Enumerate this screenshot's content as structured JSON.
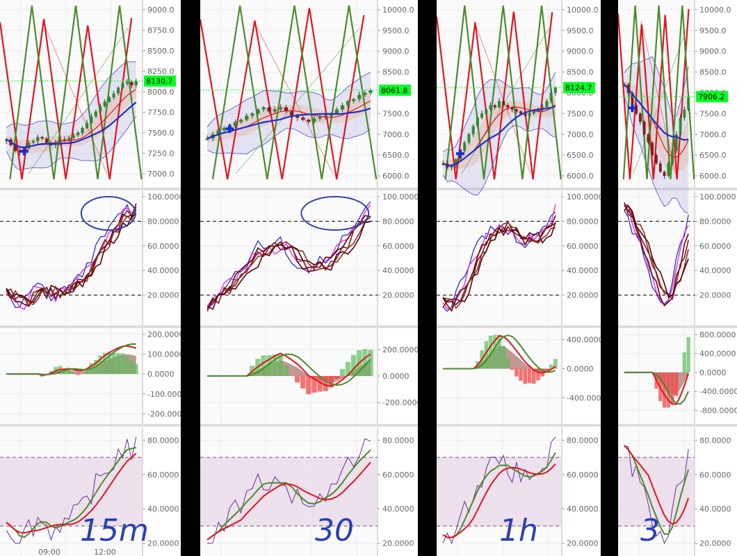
{
  "chart_data": [
    {
      "type": "candlestick",
      "timeframe_label": "15m",
      "x_tick_labels": [
        "09:00",
        "12:00"
      ],
      "price": {
        "yticks": [
          "9000.0",
          "8750.0",
          "8500.0",
          "8250.0",
          "8000.0",
          "7750.0",
          "7500.0",
          "7250.0",
          "7000.0"
        ],
        "ylim": [
          6900,
          9050
        ],
        "last_price": "8130.7",
        "close": [
          7420,
          7350,
          7280,
          7260,
          7310,
          7380,
          7400,
          7450,
          7430,
          7380,
          7350,
          7380,
          7420,
          7410,
          7440,
          7470,
          7500,
          7560,
          7620,
          7700,
          7760,
          7820,
          7880,
          7930,
          7980,
          8050,
          8100,
          8120,
          8080,
          8130
        ]
      },
      "stoch": {
        "yticks": [
          "100.0000",
          "80.0000",
          "60.0000",
          "40.0000",
          "20.0000"
        ],
        "ylim": [
          0,
          100
        ],
        "levels": [
          80,
          20
        ]
      },
      "macd": {
        "yticks": [
          "200.0000",
          "100.0000",
          "0.0000",
          "-100.0000",
          "-200.0000"
        ],
        "ylim": [
          -230,
          210
        ]
      },
      "rsi": {
        "yticks": [
          "80.0000",
          "60.0000",
          "40.0000",
          "20.0000"
        ],
        "ylim": [
          15,
          85
        ],
        "levels": [
          70,
          30
        ]
      }
    },
    {
      "type": "candlestick",
      "timeframe_label": "30",
      "x_tick_labels": [],
      "price": {
        "yticks": [
          "10000.0",
          "9500.0",
          "9000.0",
          "8500.0",
          "8000.0",
          "7500.0",
          "7000.0",
          "6500.0",
          "6000.0"
        ],
        "ylim": [
          5850,
          10100
        ],
        "last_price": "8061.8",
        "close": [
          6900,
          7000,
          7100,
          7150,
          7200,
          7300,
          7350,
          7450,
          7500,
          7600,
          7650,
          7550,
          7600,
          7650,
          7550,
          7450,
          7400,
          7350,
          7300,
          7380,
          7420,
          7450,
          7500,
          7600,
          7700,
          7800,
          7850,
          7950,
          8000,
          8060
        ]
      },
      "stoch": {
        "yticks": [
          "100.0000",
          "80.0000",
          "60.0000",
          "40.0000",
          "20.0000"
        ],
        "ylim": [
          0,
          100
        ],
        "levels": [
          80,
          20
        ]
      },
      "macd": {
        "yticks": [
          "200.0000",
          "0.0000",
          "-200.0000"
        ],
        "ylim": [
          -330,
          330
        ]
      },
      "rsi": {
        "yticks": [
          "80.0000",
          "60.0000",
          "40.0000",
          "20.0000"
        ],
        "ylim": [
          15,
          85
        ],
        "levels": [
          70,
          30
        ]
      }
    },
    {
      "type": "candlestick",
      "timeframe_label": "1h",
      "x_tick_labels": [],
      "price": {
        "yticks": [
          "10000.0",
          "9500.0",
          "9000.0",
          "8500.0",
          "8000.0",
          "7500.0",
          "7000.0",
          "6500.0",
          "6000.0"
        ],
        "ylim": [
          5850,
          10100
        ],
        "last_price": "8124.7",
        "close": [
          6300,
          6200,
          6250,
          6400,
          6600,
          6800,
          7000,
          7200,
          7400,
          7500,
          7600,
          7700,
          7650,
          7800,
          7700,
          7650,
          7600,
          7550,
          7500,
          7450,
          7500,
          7550,
          7600,
          7650,
          7800,
          8000,
          8124
        ]
      },
      "stoch": {
        "yticks": [
          "100.0000",
          "80.0000",
          "60.0000",
          "40.0000",
          "20.0000"
        ],
        "ylim": [
          0,
          100
        ],
        "levels": [
          80,
          20
        ]
      },
      "macd": {
        "yticks": [
          "400.0000",
          "0.0000",
          "-400.0000"
        ],
        "ylim": [
          -700,
          500
        ]
      },
      "rsi": {
        "yticks": [
          "80.0000",
          "60.0000",
          "40.0000",
          "20.0000"
        ],
        "ylim": [
          15,
          85
        ],
        "levels": [
          70,
          30
        ]
      }
    },
    {
      "type": "candlestick",
      "timeframe_label": "3",
      "x_tick_labels": [],
      "price": {
        "yticks": [
          "10000.0",
          "9500.0",
          "9000.0",
          "8500.0",
          "8000.0",
          "7500.0",
          "7000.0",
          "6500.0",
          "6000.0"
        ],
        "ylim": [
          5850,
          10100
        ],
        "last_price": "7906.2",
        "close": [
          8200,
          8000,
          7700,
          7500,
          7300,
          7000,
          6800,
          6500,
          6300,
          6100,
          6000,
          6300,
          6600,
          7000,
          7400,
          7600,
          7906
        ]
      },
      "stoch": {
        "yticks": [
          "100.0000",
          "80.0000",
          "60.0000",
          "40.0000",
          "20.0000"
        ],
        "ylim": [
          0,
          100
        ],
        "levels": [
          80,
          20
        ]
      },
      "macd": {
        "yticks": [
          "800.0000",
          "400.0000",
          "0.0000",
          "-400.0000",
          "-800.0000"
        ],
        "ylim": [
          -1000,
          850
        ]
      },
      "rsi": {
        "yticks": [
          "80.0000",
          "60.0000",
          "40.0000",
          "20.0000"
        ],
        "ylim": [
          15,
          85
        ],
        "levels": [
          70,
          30
        ]
      }
    }
  ],
  "colors": {
    "bull": "#2e8b2e",
    "bear": "#8b1a1a",
    "highlight": "#00ff22",
    "red_line": "#e0141e",
    "green_line": "#4a8a2a",
    "blue_line": "#1a2fd0",
    "magenta": "#e020e0",
    "rsi_band": "#e6d6e6",
    "hand_ink": "#2a3fb5"
  }
}
